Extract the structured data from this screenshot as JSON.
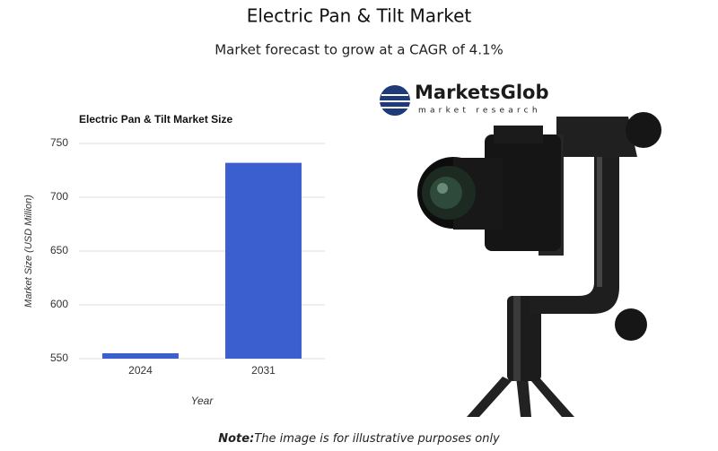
{
  "header": {
    "title": "Electric Pan & Tilt Market",
    "subtitle": "Market forecast to grow at a CAGR of 4.1%"
  },
  "logo": {
    "name": "MarketsGlob",
    "tagline": "market research"
  },
  "note": {
    "label": "Note:",
    "text": "The image is for illustrative purposes only"
  },
  "chart_data": {
    "type": "bar",
    "title": "Electric Pan & Tilt Market Size",
    "x_label": "Year",
    "y_label": "Market Size (USD Million)",
    "categories": [
      "2024",
      "2031"
    ],
    "values": [
      555,
      732
    ],
    "color": "#3b5fcf",
    "ylim": [
      550,
      750
    ],
    "yticks": [
      550,
      600,
      650,
      700,
      750
    ],
    "grid": true
  }
}
